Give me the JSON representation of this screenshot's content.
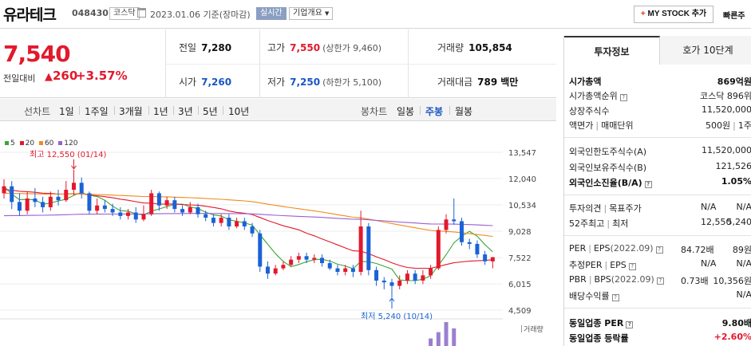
{
  "header": {
    "stock_name": "유라테크",
    "stock_code": "048430",
    "market": "코스닥",
    "date_text": "2023.01.06 기준(장마감)",
    "realtime_label": "실시간",
    "company_info_label": "기업개요",
    "mystock_label": "MY STOCK 추가",
    "quick_label": "빠른주"
  },
  "summary": {
    "current_price": "7,540",
    "change_label": "전일대비",
    "change_amount": "260",
    "change_percent": "+3.57%",
    "prev_close_label": "전일",
    "prev_close": "7,280",
    "high_label": "고가",
    "high": "7,550",
    "high_sub": "(상한가 9,460)",
    "volume_label": "거래량",
    "volume": "105,854",
    "open_label": "시가",
    "open": "7,260",
    "low_label": "저가",
    "low": "7,250",
    "low_sub": "(하한가 5,100)",
    "amount_label": "거래대금",
    "amount": "789",
    "amount_unit": "백만"
  },
  "toolbar": {
    "line_chart": "선차트",
    "periods": [
      "1일",
      "1주일",
      "3개월",
      "1년",
      "3년",
      "5년",
      "10년"
    ],
    "candle_chart": "봉차트",
    "candle_periods": [
      "일봉",
      "주봉",
      "월봉"
    ],
    "active_candle": "주봉"
  },
  "chart_data": {
    "type": "candlestick",
    "legend": [
      {
        "name": "5",
        "color": "#3aa63a"
      },
      {
        "name": "20",
        "color": "#e2192c"
      },
      {
        "name": "60",
        "color": "#f08c1e"
      },
      {
        "name": "120",
        "color": "#9a5fd0"
      }
    ],
    "y_ticks": [
      13547,
      12040,
      10534,
      9028,
      7522,
      6015,
      4509
    ],
    "ylim": [
      4509,
      13547
    ],
    "annotations": {
      "max_label": "최고 12,550 (01/14)",
      "min_label": "최저 5,240 (10/14)"
    },
    "volume_label": "거래량",
    "candles": [
      {
        "o": 11200,
        "c": 11600,
        "h": 12000,
        "l": 10900
      },
      {
        "o": 11600,
        "c": 10700,
        "h": 11900,
        "l": 10300
      },
      {
        "o": 10700,
        "c": 10200,
        "h": 11200,
        "l": 9900
      },
      {
        "o": 10200,
        "c": 10900,
        "h": 11300,
        "l": 10000
      },
      {
        "o": 10900,
        "c": 10700,
        "h": 11500,
        "l": 10400
      },
      {
        "o": 10700,
        "c": 10400,
        "h": 11000,
        "l": 10100
      },
      {
        "o": 10400,
        "c": 11000,
        "h": 11300,
        "l": 10200
      },
      {
        "o": 11000,
        "c": 10800,
        "h": 11400,
        "l": 10500
      },
      {
        "o": 10800,
        "c": 11400,
        "h": 11900,
        "l": 10700
      },
      {
        "o": 11400,
        "c": 11800,
        "h": 12550,
        "l": 11100
      },
      {
        "o": 11800,
        "c": 11200,
        "h": 12100,
        "l": 10900
      },
      {
        "o": 11200,
        "c": 10200,
        "h": 11300,
        "l": 10000
      },
      {
        "o": 10200,
        "c": 10500,
        "h": 10900,
        "l": 10000
      },
      {
        "o": 10500,
        "c": 10300,
        "h": 10800,
        "l": 10100
      },
      {
        "o": 10300,
        "c": 10100,
        "h": 10600,
        "l": 9900
      },
      {
        "o": 10100,
        "c": 9900,
        "h": 10400,
        "l": 9700
      },
      {
        "o": 9900,
        "c": 10100,
        "h": 10300,
        "l": 9700
      },
      {
        "o": 10100,
        "c": 9700,
        "h": 10400,
        "l": 9500
      },
      {
        "o": 9700,
        "c": 10000,
        "h": 10500,
        "l": 9600
      },
      {
        "o": 10000,
        "c": 11200,
        "h": 11400,
        "l": 9900
      },
      {
        "o": 11200,
        "c": 10500,
        "h": 11300,
        "l": 10200
      },
      {
        "o": 10500,
        "c": 10800,
        "h": 11000,
        "l": 10300
      },
      {
        "o": 10800,
        "c": 10300,
        "h": 11000,
        "l": 10100
      },
      {
        "o": 10300,
        "c": 10100,
        "h": 10500,
        "l": 9900
      },
      {
        "o": 10100,
        "c": 10400,
        "h": 10700,
        "l": 10000
      },
      {
        "o": 10400,
        "c": 10000,
        "h": 10600,
        "l": 9800
      },
      {
        "o": 10000,
        "c": 9800,
        "h": 10200,
        "l": 9600
      },
      {
        "o": 9800,
        "c": 9500,
        "h": 10000,
        "l": 9300
      },
      {
        "o": 9500,
        "c": 9800,
        "h": 10000,
        "l": 9300
      },
      {
        "o": 9800,
        "c": 9300,
        "h": 10000,
        "l": 9100
      },
      {
        "o": 9300,
        "c": 9600,
        "h": 9800,
        "l": 9200
      },
      {
        "o": 9600,
        "c": 9300,
        "h": 9800,
        "l": 9100
      },
      {
        "o": 9300,
        "c": 8900,
        "h": 9500,
        "l": 8700
      },
      {
        "o": 8900,
        "c": 7000,
        "h": 9100,
        "l": 6700
      },
      {
        "o": 7000,
        "c": 6600,
        "h": 7300,
        "l": 6300
      },
      {
        "o": 6600,
        "c": 6900,
        "h": 7100,
        "l": 6500
      },
      {
        "o": 6900,
        "c": 7100,
        "h": 7300,
        "l": 6800
      },
      {
        "o": 7100,
        "c": 7400,
        "h": 7600,
        "l": 7000
      },
      {
        "o": 7400,
        "c": 7600,
        "h": 7800,
        "l": 7200
      },
      {
        "o": 7600,
        "c": 7400,
        "h": 7800,
        "l": 7200
      },
      {
        "o": 7400,
        "c": 7500,
        "h": 7700,
        "l": 7200
      },
      {
        "o": 7500,
        "c": 7200,
        "h": 7700,
        "l": 7000
      },
      {
        "o": 7200,
        "c": 6900,
        "h": 7400,
        "l": 6800
      },
      {
        "o": 6900,
        "c": 6700,
        "h": 7100,
        "l": 6500
      },
      {
        "o": 6700,
        "c": 6900,
        "h": 7100,
        "l": 6500
      },
      {
        "o": 6900,
        "c": 6700,
        "h": 7100,
        "l": 6400
      },
      {
        "o": 6700,
        "c": 9300,
        "h": 10200,
        "l": 6500
      },
      {
        "o": 9300,
        "c": 6800,
        "h": 9500,
        "l": 6500
      },
      {
        "o": 6800,
        "c": 6200,
        "h": 7000,
        "l": 5900
      },
      {
        "o": 6200,
        "c": 6100,
        "h": 6400,
        "l": 5700
      },
      {
        "o": 6100,
        "c": 5900,
        "h": 6300,
        "l": 5240
      },
      {
        "o": 5900,
        "c": 6200,
        "h": 6500,
        "l": 5700
      },
      {
        "o": 6200,
        "c": 6600,
        "h": 6800,
        "l": 6000
      },
      {
        "o": 6600,
        "c": 6200,
        "h": 6800,
        "l": 6000
      },
      {
        "o": 6200,
        "c": 6500,
        "h": 6800,
        "l": 6000
      },
      {
        "o": 6500,
        "c": 6900,
        "h": 7100,
        "l": 6300
      },
      {
        "o": 6900,
        "c": 9100,
        "h": 9300,
        "l": 6800
      },
      {
        "o": 9100,
        "c": 9700,
        "h": 10000,
        "l": 8900
      },
      {
        "o": 9700,
        "c": 9600,
        "h": 10900,
        "l": 9400
      },
      {
        "o": 9600,
        "c": 8400,
        "h": 9800,
        "l": 8200
      },
      {
        "o": 8400,
        "c": 8300,
        "h": 8600,
        "l": 8000
      },
      {
        "o": 8300,
        "c": 7700,
        "h": 8500,
        "l": 7500
      },
      {
        "o": 7700,
        "c": 7300,
        "h": 7900,
        "l": 7100
      },
      {
        "o": 7300,
        "c": 7540,
        "h": 7550,
        "l": 6900
      }
    ],
    "volumes": [
      0,
      0,
      0,
      0,
      0,
      0,
      0,
      0,
      0,
      0,
      0,
      0,
      0,
      0,
      0,
      0,
      0,
      0,
      0,
      0,
      0,
      0,
      0,
      0,
      0,
      0,
      0,
      0,
      0,
      0,
      0,
      0,
      0,
      0,
      0,
      0,
      0,
      0,
      0,
      0,
      0,
      0,
      0,
      0,
      0,
      0,
      0,
      0,
      0,
      0,
      0,
      0,
      0,
      0,
      0,
      30,
      55,
      95,
      70,
      0,
      0,
      0,
      0,
      0
    ]
  },
  "panel": {
    "tab_invest": "투자정보",
    "tab_quote": "호가 10단계",
    "rows": {
      "market_cap_label": "시가총액",
      "market_cap": "869억원",
      "market_cap_rank_label": "시가총액순위",
      "market_cap_rank": "코스닥 896위",
      "shares_label": "상장주식수",
      "shares": "11,520,000",
      "par_label": "액면가",
      "trade_unit_label": "매매단위",
      "par_value": "500원",
      "trade_unit": "1주",
      "foreign_limit_label": "외국인한도주식수(A)",
      "foreign_limit": "11,520,000",
      "foreign_hold_label": "외국인보유주식수(B)",
      "foreign_hold": "121,526",
      "foreign_ratio_label": "외국인소진율(B/A)",
      "foreign_ratio": "1.05%",
      "opinion_label": "투자의견",
      "target_label": "목표주가",
      "opinion": "N/A",
      "target": "N/A",
      "week52_label": "52주최고",
      "week52_low_label": "최저",
      "week52_high": "12,550",
      "week52_low": "5,240",
      "per_label": "PER",
      "eps_label": "EPS",
      "eps_period": "(2022.09)",
      "per": "84.72배",
      "eps": "89원",
      "est_per_label": "추정PER",
      "est_eps_label": "EPS",
      "est_per": "N/A",
      "est_eps": "N/A",
      "pbr_label": "PBR",
      "bps_label": "BPS",
      "bps_period": "(2022.09)",
      "pbr": "0.73배",
      "bps": "10,356원",
      "dividend_label": "배당수익률",
      "dividend": "N/A",
      "industry_per_label": "동일업종 PER",
      "industry_per": "9.80배",
      "industry_rate_label": "동일업종 등락률",
      "industry_rate": "+2.60%"
    }
  }
}
